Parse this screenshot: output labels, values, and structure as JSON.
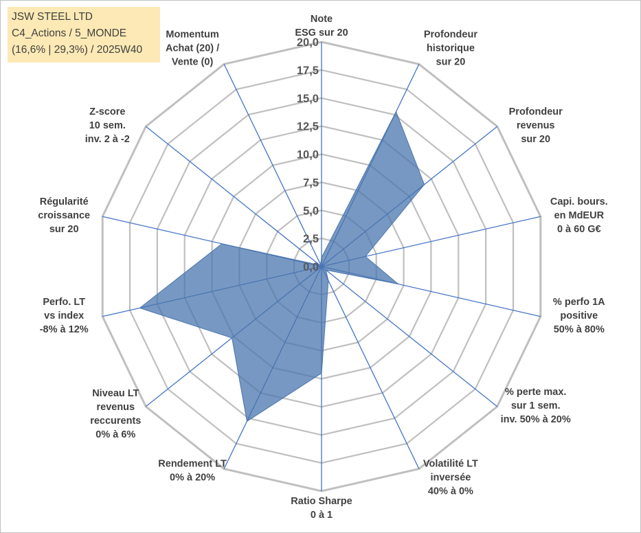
{
  "info": {
    "line1": "JSW STEEL LTD",
    "line2": "C4_Actions / 5_MONDE",
    "line3": "(16,6% | 29,3%) / 2025W40"
  },
  "colors": {
    "grid": "#bfbfbf",
    "spoke": "#4472c4",
    "fill": "#4a76ae",
    "fill_opacity": 0.75,
    "text": "#404040",
    "info_bg": "#fde9b5"
  },
  "chart_data": {
    "type": "radar",
    "title": "",
    "rmin": 0,
    "rmax": 20,
    "tick_step": 2.5,
    "tick_labels": [
      "0,0",
      "2,5",
      "5,0",
      "7,5",
      "10,0",
      "12,5",
      "15,0",
      "17,5",
      "20,0"
    ],
    "categories": [
      [
        "Note",
        "ESG sur 20"
      ],
      [
        "Profondeur",
        "historique",
        "sur 20"
      ],
      [
        "Profondeur",
        "revenus",
        "sur 20"
      ],
      [
        "Capi. bours.",
        "en MdEUR",
        "0 à 60 G€"
      ],
      [
        "% perfo 1A",
        "positive",
        "50% à 80%"
      ],
      [
        "% perte max.",
        "sur 1 sem.",
        "inv. 50% à 20%"
      ],
      [
        "Volatilité LT",
        "inversée",
        "40% à 0%"
      ],
      [
        "Ratio Sharpe",
        "0 à 1"
      ],
      [
        "Rendement LT",
        "0% à 20%"
      ],
      [
        "Niveau LT",
        "revenus",
        "reccurents",
        "0% à 6%"
      ],
      [
        "Perfo. LT",
        "vs index",
        "-8% à 12%"
      ],
      [
        "Régularité",
        "croissance",
        "sur 20"
      ],
      [
        "Z-score",
        "10 sem.",
        "inv. 2 à -2"
      ],
      [
        "Momentum",
        "Achat (20) /",
        "Vente (0)"
      ]
    ],
    "series": [
      {
        "name": "JSW STEEL LTD",
        "values": [
          0.8,
          15.3,
          11.7,
          4.0,
          7.0,
          0.5,
          1.4,
          9.5,
          15.3,
          10.2,
          16.6,
          9.1,
          0.2,
          0.2
        ]
      }
    ]
  }
}
